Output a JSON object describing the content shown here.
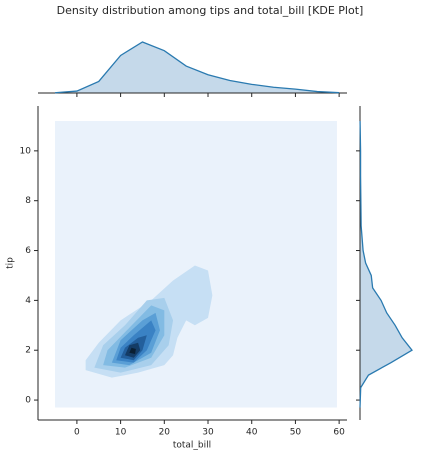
{
  "chart_data": {
    "type": "kde_joint",
    "title": "Density distribution among tips and total_bill [KDE Plot]",
    "xlabel": "total_bill",
    "ylabel": "tip",
    "xlim": [
      -8.9,
      61.8
    ],
    "ylim": [
      -0.8,
      11.8
    ],
    "xticks": [
      0,
      10,
      20,
      30,
      40,
      50,
      60
    ],
    "yticks": [
      0,
      2,
      4,
      6,
      8,
      10
    ],
    "line_color": "#2a7ab0",
    "fill_color": "#c5d9ea",
    "x_density": {
      "x": [
        -5,
        0,
        5,
        10,
        15,
        20,
        25,
        30,
        35,
        40,
        45,
        50,
        55,
        60
      ],
      "values": [
        0.0003,
        0.002,
        0.012,
        0.039,
        0.053,
        0.044,
        0.028,
        0.019,
        0.013,
        0.009,
        0.006,
        0.004,
        0.0015,
        0.0003
      ]
    },
    "y_density": {
      "y": [
        -0.3,
        0.5,
        1,
        1.5,
        2,
        2.5,
        3,
        3.5,
        4,
        4.5,
        5,
        5.5,
        6,
        7,
        8,
        9,
        10,
        11.2
      ],
      "values": [
        0,
        0.005,
        0.06,
        0.22,
        0.37,
        0.3,
        0.25,
        0.19,
        0.15,
        0.09,
        0.08,
        0.04,
        0.022,
        0.008,
        0.006,
        0.004,
        0.004,
        0.0005
      ]
    },
    "contours": [
      {
        "color": "#eaf2fb",
        "x": [
          -5,
          59.5,
          59.5,
          -5
        ],
        "y": [
          -0.3,
          -0.3,
          11.2,
          11.2
        ]
      },
      {
        "color": "#c6dff4",
        "x": [
          2,
          8,
          14,
          20,
          22,
          23,
          25,
          27,
          30,
          31,
          30,
          27,
          22,
          17,
          10,
          5,
          2
        ],
        "y": [
          1.2,
          0.9,
          1.1,
          1.4,
          1.8,
          2.5,
          3.2,
          3.0,
          3.3,
          4.2,
          5.2,
          5.4,
          4.8,
          4.0,
          3.2,
          2.3,
          1.6
        ]
      },
      {
        "color": "#a8cfec",
        "x": [
          4,
          10,
          17,
          21,
          22,
          20,
          16,
          11,
          6
        ],
        "y": [
          1.3,
          1.1,
          1.4,
          2.2,
          3.2,
          4.1,
          4.0,
          3.0,
          2.2
        ]
      },
      {
        "color": "#82bbe3",
        "x": [
          6,
          11,
          17,
          20,
          20,
          17,
          12,
          7
        ],
        "y": [
          1.4,
          1.3,
          1.7,
          2.6,
          3.6,
          3.8,
          2.9,
          2.0
        ]
      },
      {
        "color": "#5a9fd6",
        "x": [
          8,
          12,
          17,
          19,
          18,
          15,
          10
        ],
        "y": [
          1.5,
          1.4,
          1.9,
          2.8,
          3.5,
          3.2,
          2.4
        ]
      },
      {
        "color": "#3a82c4",
        "x": [
          9,
          13,
          16,
          18,
          17,
          13,
          10
        ],
        "y": [
          1.6,
          1.5,
          2.0,
          2.8,
          3.2,
          2.6,
          2.1
        ]
      },
      {
        "color": "#235f9c",
        "x": [
          10,
          13,
          15,
          16,
          14,
          11
        ],
        "y": [
          1.7,
          1.6,
          2.0,
          2.6,
          2.5,
          2.1
        ]
      },
      {
        "color": "#143c66",
        "x": [
          11,
          13,
          14.5,
          14,
          12
        ],
        "y": [
          1.8,
          1.7,
          2.0,
          2.3,
          2.2
        ]
      },
      {
        "color": "#0a1f33",
        "x": [
          12,
          13.3,
          13.5,
          12.5
        ],
        "y": [
          1.9,
          1.85,
          2.05,
          2.1
        ]
      }
    ]
  }
}
